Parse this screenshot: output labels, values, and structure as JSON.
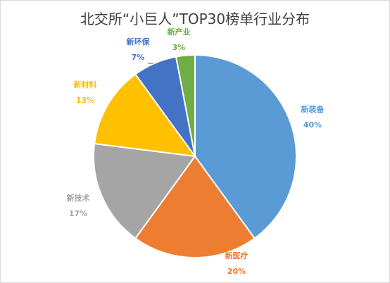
{
  "chart_data": {
    "type": "pie",
    "title": "北交所“小巨人”TOP30榜单行业分布",
    "categories": [
      "新装备",
      "新医疗",
      "新技术",
      "新材料",
      "新环保",
      "新产业"
    ],
    "values": [
      40,
      20,
      17,
      13,
      7,
      3
    ],
    "value_labels": [
      "40%",
      "20%",
      "17%",
      "13%",
      "7%",
      "3%"
    ],
    "colors": [
      "#5B9BD5",
      "#ED7D31",
      "#A5A5A5",
      "#FFC000",
      "#4472C4",
      "#70AD47"
    ],
    "start": "top (12 o'clock)",
    "direction": "clockwise",
    "legend": "none (labels outside slices)"
  }
}
